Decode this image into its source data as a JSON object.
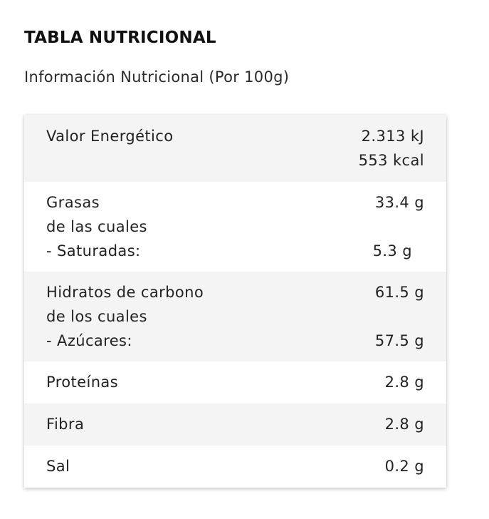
{
  "heading": "TABLA NUTRICIONAL",
  "subheading": "Información Nutricional (Por 100g)",
  "rows": [
    {
      "label_lines": [
        "Valor Energético"
      ],
      "value_lines": [
        "2.313 kJ",
        "553 kcal"
      ]
    },
    {
      "label_lines": [
        "Grasas",
        "de las cuales",
        "- Saturadas:"
      ],
      "value_lines": [
        "33.4 g",
        "",
        "5.3 g"
      ]
    },
    {
      "label_lines": [
        "Hidratos de carbono",
        "de los cuales",
        "- Azúcares:"
      ],
      "value_lines": [
        "61.5 g",
        "",
        "57.5 g"
      ]
    },
    {
      "label_lines": [
        "Proteínas"
      ],
      "value_lines": [
        "2.8 g"
      ]
    },
    {
      "label_lines": [
        "Fibra"
      ],
      "value_lines": [
        "2.8 g"
      ]
    },
    {
      "label_lines": [
        "Sal"
      ],
      "value_lines": [
        "0.2 g"
      ]
    }
  ],
  "colors": {
    "row_alt": "#f4f4f4",
    "row_white": "#ffffff",
    "text": "#222222"
  }
}
